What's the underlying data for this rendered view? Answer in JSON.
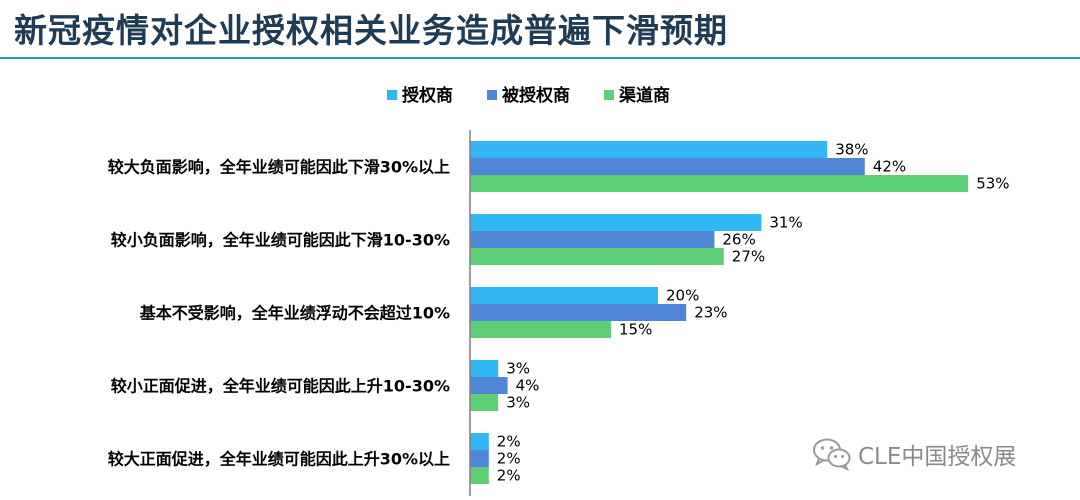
{
  "title": "新冠疫情对企业授权相关业务造成普遍下滑预期",
  "watermark": "CLE中国授权展",
  "watermark_icon": "wechat-icon",
  "colors": {
    "title": "#1f3c57",
    "rule": "#1b9fa8",
    "axis": "#7f7f7f"
  },
  "chart_data": {
    "type": "bar",
    "orientation": "horizontal",
    "title": "",
    "xlabel": "",
    "ylabel": "",
    "xlim": [
      0,
      70
    ],
    "grid": false,
    "legend_position": "top",
    "value_format": "percent",
    "categories": [
      "较大负面影响，全年业绩可能因此下滑30%以上",
      "较小负面影响，全年业绩可能因此下滑10-30%",
      "基本不受影响，全年业绩浮动不会超过10%",
      "较小正面促进，全年业绩可能因此上升10-30%",
      "较大正面促进，全年业绩可能因此上升30%以上"
    ],
    "series": [
      {
        "name": "授权商",
        "color": "#33b6f4",
        "values": [
          38,
          31,
          20,
          3,
          2
        ]
      },
      {
        "name": "被授权商",
        "color": "#4f86d6",
        "values": [
          42,
          26,
          23,
          4,
          2
        ]
      },
      {
        "name": "渠道商",
        "color": "#5ecf76",
        "values": [
          53,
          27,
          15,
          3,
          2
        ]
      }
    ]
  }
}
